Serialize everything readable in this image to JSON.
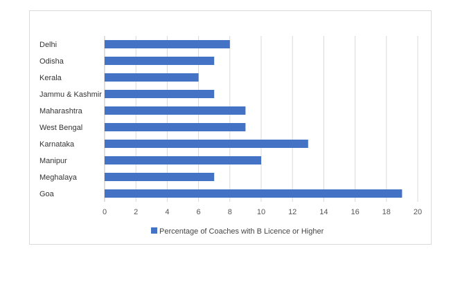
{
  "chart_data": {
    "type": "bar",
    "orientation": "horizontal",
    "categories": [
      "Delhi",
      "Odisha",
      "Kerala",
      "Jammu & Kashmir",
      "Maharashtra",
      "West Bengal",
      "Karnataka",
      "Manipur",
      "Meghalaya",
      "Goa"
    ],
    "series": [
      {
        "name": "Percentage of Coaches with B Licence or Higher",
        "values": [
          8,
          7,
          6,
          7,
          9,
          9,
          13,
          10,
          7,
          19
        ]
      }
    ],
    "title": "",
    "xlabel": "",
    "ylabel": "",
    "xlim": [
      0,
      20
    ],
    "x_ticks": [
      0,
      2,
      4,
      6,
      8,
      10,
      12,
      14,
      16,
      18,
      20
    ],
    "grid": true,
    "legend_position": "bottom",
    "colors": {
      "bar": "#4472c4",
      "grid": "#d9d9d9",
      "axis": "#bfbfbf"
    }
  }
}
